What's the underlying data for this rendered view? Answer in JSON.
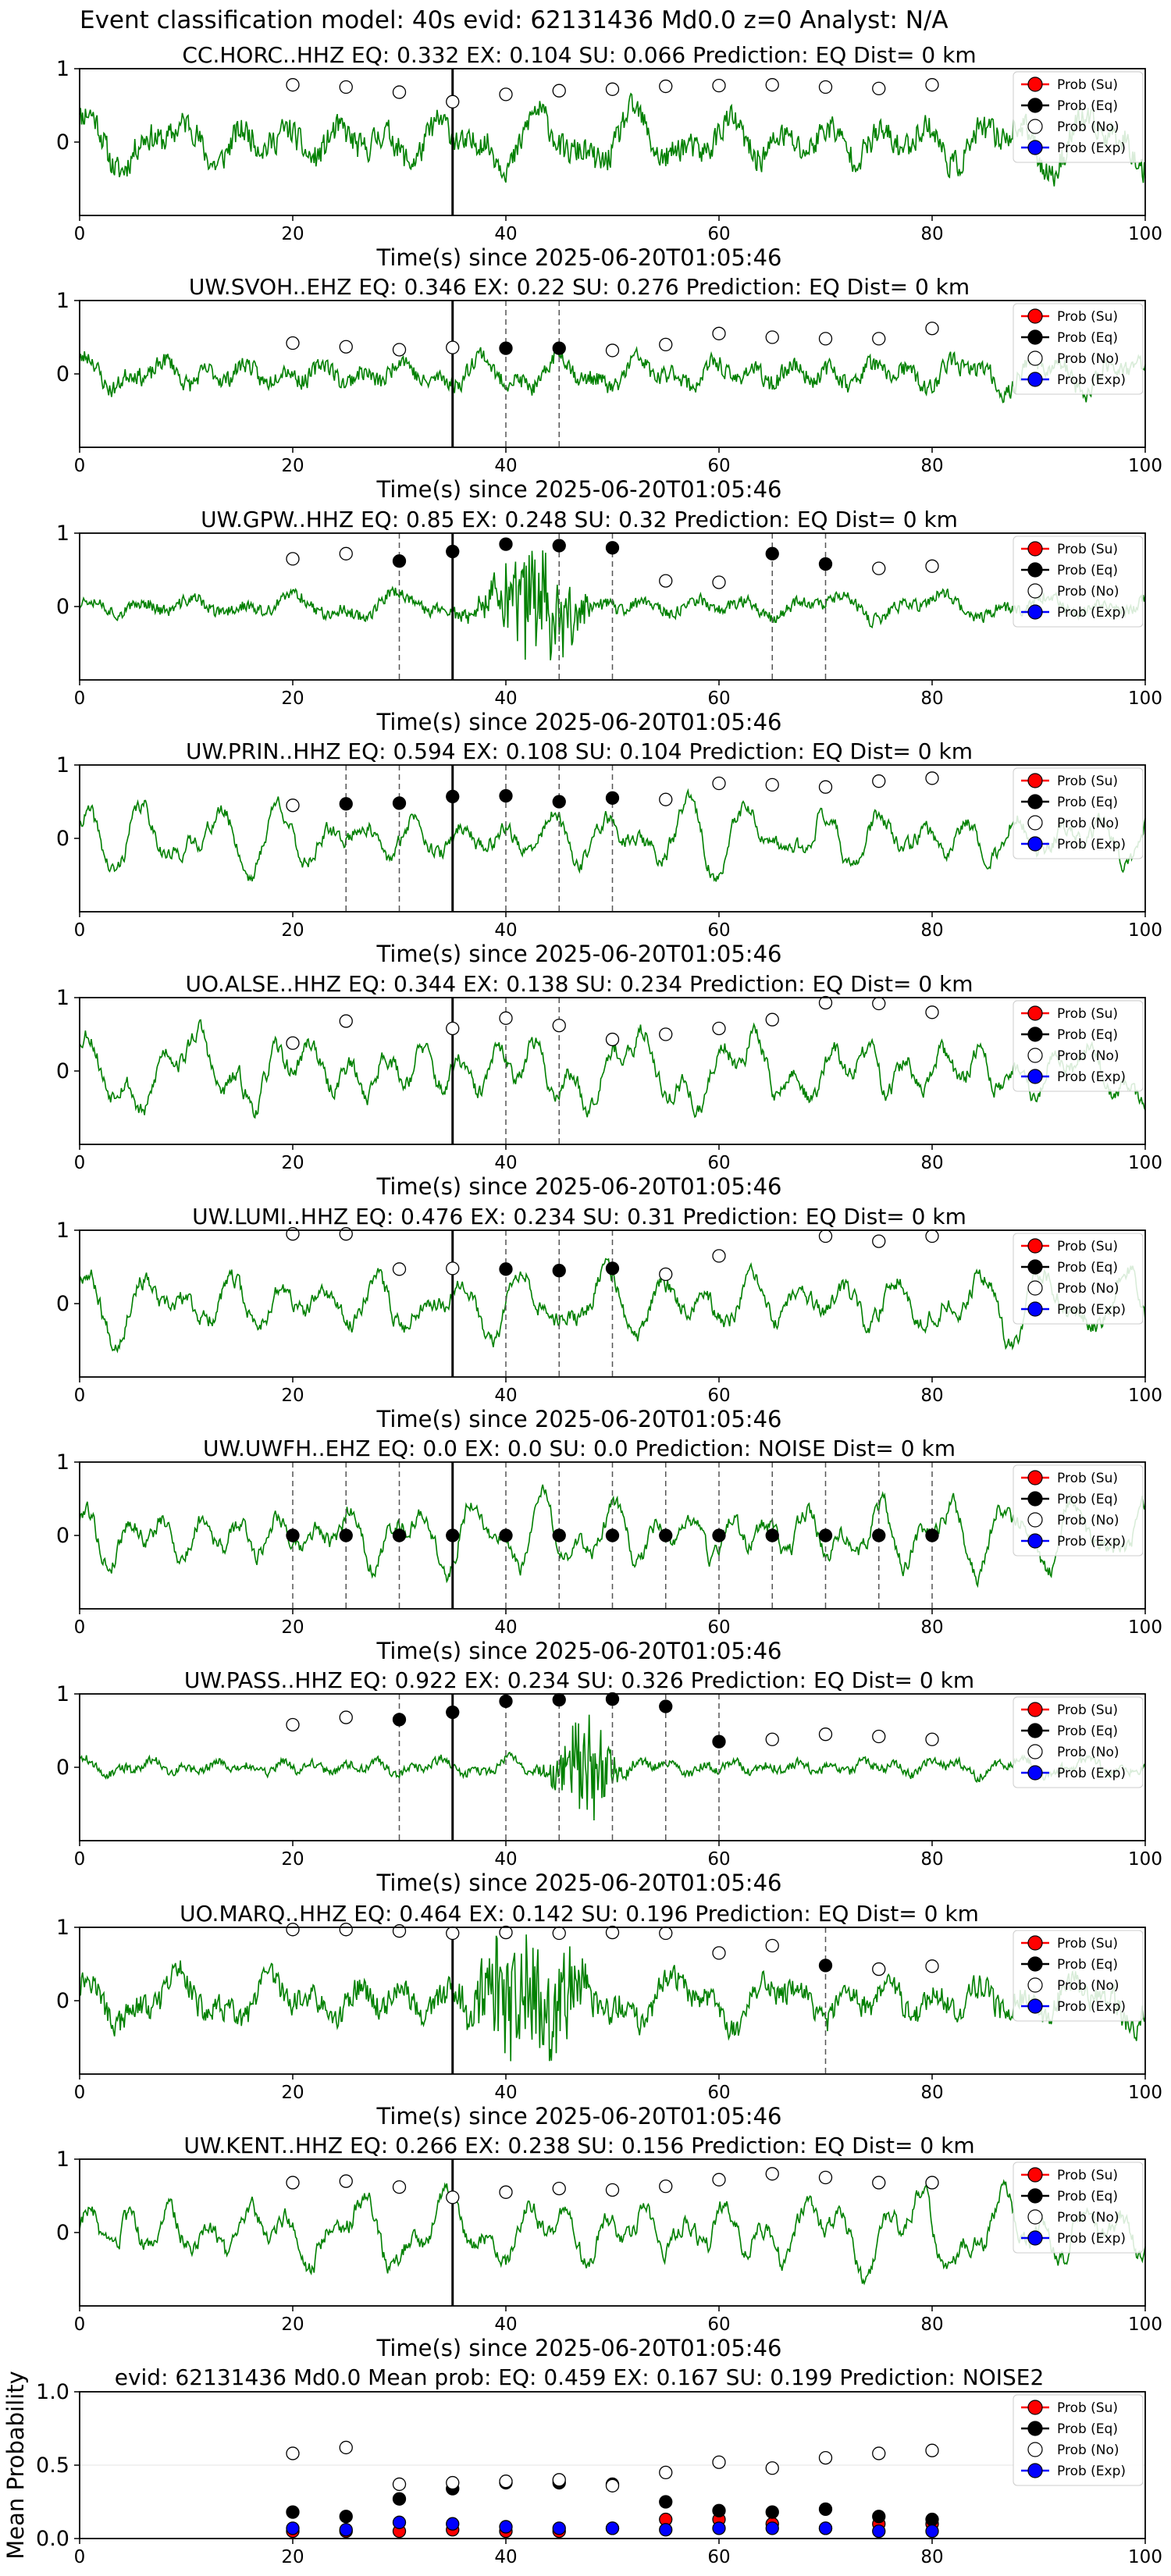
{
  "figure": {
    "suptitle": "Event classification model: 40s evid: 62131436 Md0.0 z=0 Analyst: N/A"
  },
  "legend_labels": [
    "Prob (Su)",
    "Prob (Eq)",
    "Prob (No)",
    "Prob (Exp)"
  ],
  "colors": {
    "waveform": "#008000",
    "su": "#ff0000",
    "eq": "#000000",
    "no": "#ffffff",
    "exp": "#0000ff",
    "pick_line": "#000000",
    "window_line": "#555555"
  },
  "chart_data": [
    {
      "type": "line",
      "station": "CC.HORC..HHZ",
      "title": "CC.HORC..HHZ   EQ: 0.332  EX: 0.104  SU: 0.066   Prediction: EQ    Dist= 0 km",
      "xlabel": "Time(s) since 2025-06-20T01:05:46",
      "xlim": [
        0,
        100
      ],
      "ylim": [
        -1,
        1
      ],
      "xticks": [
        0,
        20,
        40,
        60,
        80,
        100
      ],
      "yticks": [
        0,
        1
      ],
      "pick_time": 35,
      "amp": 0.55,
      "seed": 11,
      "burst": null,
      "eq_markers": [],
      "windows": [],
      "noise_markers": {
        "x": [
          20,
          25,
          30,
          35,
          40,
          45,
          50,
          55,
          60,
          65,
          70,
          75,
          80
        ],
        "y": [
          0.78,
          0.75,
          0.68,
          0.55,
          0.65,
          0.7,
          0.72,
          0.76,
          0.77,
          0.78,
          0.75,
          0.73,
          0.78
        ]
      }
    },
    {
      "type": "line",
      "station": "UW.SVOH..EHZ",
      "title": "UW.SVOH..EHZ   EQ: 0.346  EX: 0.22  SU: 0.276   Prediction: EQ    Dist= 0 km",
      "xlabel": "Time(s) since 2025-06-20T01:05:46",
      "xlim": [
        0,
        100
      ],
      "ylim": [
        -1,
        1
      ],
      "xticks": [
        0,
        20,
        40,
        60,
        80,
        100
      ],
      "yticks": [
        0,
        1
      ],
      "pick_time": 35,
      "amp": 0.35,
      "seed": 23,
      "burst": null,
      "eq_markers": [
        {
          "x": 40,
          "y": 0.35
        },
        {
          "x": 45,
          "y": 0.35
        }
      ],
      "windows": [
        40,
        45
      ],
      "noise_markers": {
        "x": [
          20,
          25,
          30,
          35,
          50,
          55,
          60,
          65,
          70,
          75,
          80
        ],
        "y": [
          0.42,
          0.37,
          0.33,
          0.36,
          0.32,
          0.4,
          0.55,
          0.5,
          0.48,
          0.48,
          0.62
        ]
      }
    },
    {
      "type": "line",
      "station": "UW.GPW..HHZ",
      "title": "UW.GPW..HHZ   EQ: 0.85  EX: 0.248  SU: 0.32   Prediction: EQ    Dist= 0 km",
      "xlabel": "Time(s) since 2025-06-20T01:05:46",
      "xlim": [
        0,
        100
      ],
      "ylim": [
        -1,
        1
      ],
      "xticks": [
        0,
        20,
        40,
        60,
        80,
        100
      ],
      "yticks": [
        0,
        1
      ],
      "pick_time": 35,
      "amp": 0.25,
      "seed": 37,
      "burst": {
        "center": 43,
        "width": 4,
        "gain": 3.2
      },
      "eq_markers": [
        {
          "x": 30,
          "y": 0.62
        },
        {
          "x": 35,
          "y": 0.75
        },
        {
          "x": 40,
          "y": 0.85
        },
        {
          "x": 45,
          "y": 0.83
        },
        {
          "x": 50,
          "y": 0.8
        },
        {
          "x": 65,
          "y": 0.72
        },
        {
          "x": 70,
          "y": 0.58
        }
      ],
      "windows": [
        30,
        45,
        50,
        65,
        70
      ],
      "noise_markers": {
        "x": [
          20,
          25,
          55,
          60,
          75,
          80
        ],
        "y": [
          0.65,
          0.72,
          0.35,
          0.33,
          0.52,
          0.55
        ]
      }
    },
    {
      "type": "line",
      "station": "UW.PRIN..HHZ",
      "title": "UW.PRIN..HHZ   EQ: 0.594  EX: 0.108  SU: 0.104   Prediction: EQ    Dist= 0 km",
      "xlabel": "Time(s) since 2025-06-20T01:05:46",
      "xlim": [
        0,
        100
      ],
      "ylim": [
        -1,
        1
      ],
      "xticks": [
        0,
        20,
        40,
        60,
        80,
        100
      ],
      "yticks": [
        0,
        1
      ],
      "pick_time": 35,
      "amp": 0.65,
      "seed": 41,
      "burst": null,
      "eq_markers": [
        {
          "x": 25,
          "y": 0.47
        },
        {
          "x": 30,
          "y": 0.48
        },
        {
          "x": 35,
          "y": 0.57
        },
        {
          "x": 40,
          "y": 0.58
        },
        {
          "x": 45,
          "y": 0.5
        },
        {
          "x": 50,
          "y": 0.55
        }
      ],
      "windows": [
        25,
        30,
        40,
        45,
        50
      ],
      "noise_markers": {
        "x": [
          20,
          55,
          60,
          65,
          70,
          75,
          80
        ],
        "y": [
          0.45,
          0.53,
          0.75,
          0.73,
          0.7,
          0.78,
          0.82
        ]
      }
    },
    {
      "type": "line",
      "station": "UO.ALSE..HHZ",
      "title": "UO.ALSE..HHZ   EQ: 0.344  EX: 0.138  SU: 0.234   Prediction: EQ    Dist= 0 km",
      "xlabel": "Time(s) since 2025-06-20T01:05:46",
      "xlim": [
        0,
        100
      ],
      "ylim": [
        -1,
        1
      ],
      "xticks": [
        0,
        20,
        40,
        60,
        80,
        100
      ],
      "yticks": [
        0,
        1
      ],
      "pick_time": 35,
      "amp": 0.75,
      "seed": 53,
      "burst": null,
      "eq_markers": [],
      "windows": [
        40,
        45
      ],
      "noise_markers": {
        "x": [
          20,
          25,
          35,
          40,
          45,
          50,
          55,
          60,
          65,
          70,
          75,
          80
        ],
        "y": [
          0.38,
          0.68,
          0.58,
          0.72,
          0.62,
          0.43,
          0.5,
          0.58,
          0.7,
          0.93,
          0.92,
          0.8
        ]
      }
    },
    {
      "type": "line",
      "station": "UW.LUMI..HHZ",
      "title": "UW.LUMI..HHZ   EQ: 0.476  EX: 0.234  SU: 0.31   Prediction: EQ    Dist= 0 km",
      "xlabel": "Time(s) since 2025-06-20T01:05:46",
      "xlim": [
        0,
        100
      ],
      "ylim": [
        -1,
        1
      ],
      "xticks": [
        0,
        20,
        40,
        60,
        80,
        100
      ],
      "yticks": [
        0,
        1
      ],
      "pick_time": 35,
      "amp": 0.7,
      "seed": 67,
      "burst": null,
      "eq_markers": [
        {
          "x": 40,
          "y": 0.47
        },
        {
          "x": 45,
          "y": 0.45
        },
        {
          "x": 50,
          "y": 0.48
        }
      ],
      "windows": [
        40,
        45,
        50
      ],
      "noise_markers": {
        "x": [
          20,
          25,
          30,
          35,
          55,
          60,
          70,
          75,
          80
        ],
        "y": [
          0.95,
          0.95,
          0.47,
          0.48,
          0.4,
          0.65,
          0.92,
          0.85,
          0.92
        ]
      }
    },
    {
      "type": "line",
      "station": "UW.UWFH..EHZ",
      "title": "UW.UWFH..EHZ   EQ: 0.0  EX: 0.0  SU: 0.0   Prediction: NOISE    Dist= 0 km",
      "xlabel": "Time(s) since 2025-06-20T01:05:46",
      "xlim": [
        0,
        100
      ],
      "ylim": [
        -1,
        1
      ],
      "xticks": [
        0,
        20,
        40,
        60,
        80,
        100
      ],
      "yticks": [
        0,
        1
      ],
      "pick_time": 35,
      "amp": 0.7,
      "seed": 79,
      "burst": null,
      "eq_markers": [
        {
          "x": 20,
          "y": 0
        },
        {
          "x": 25,
          "y": 0
        },
        {
          "x": 30,
          "y": 0
        },
        {
          "x": 35,
          "y": 0
        },
        {
          "x": 40,
          "y": 0
        },
        {
          "x": 45,
          "y": 0
        },
        {
          "x": 50,
          "y": 0
        },
        {
          "x": 55,
          "y": 0
        },
        {
          "x": 60,
          "y": 0
        },
        {
          "x": 65,
          "y": 0
        },
        {
          "x": 70,
          "y": 0
        },
        {
          "x": 75,
          "y": 0
        },
        {
          "x": 80,
          "y": 0
        }
      ],
      "windows": [
        20,
        25,
        30,
        40,
        45,
        50,
        55,
        60,
        65,
        70,
        75,
        80
      ],
      "noise_markers": {
        "x": [],
        "y": []
      }
    },
    {
      "type": "line",
      "station": "UW.PASS..HHZ",
      "title": "UW.PASS..HHZ   EQ: 0.922  EX: 0.234  SU: 0.326   Prediction: EQ    Dist= 0 km",
      "xlabel": "Time(s) since 2025-06-20T01:05:46",
      "xlim": [
        0,
        100
      ],
      "ylim": [
        -1,
        1
      ],
      "xticks": [
        0,
        20,
        40,
        60,
        80,
        100
      ],
      "yticks": [
        0,
        1
      ],
      "pick_time": 35,
      "amp": 0.18,
      "seed": 89,
      "burst": {
        "center": 47.5,
        "width": 2.5,
        "gain": 4.2
      },
      "eq_markers": [
        {
          "x": 30,
          "y": 0.65
        },
        {
          "x": 35,
          "y": 0.75
        },
        {
          "x": 40,
          "y": 0.9
        },
        {
          "x": 45,
          "y": 0.92
        },
        {
          "x": 50,
          "y": 0.93
        },
        {
          "x": 55,
          "y": 0.83
        },
        {
          "x": 60,
          "y": 0.35
        }
      ],
      "windows": [
        30,
        40,
        45,
        50,
        55,
        60
      ],
      "noise_markers": {
        "x": [
          20,
          25,
          65,
          70,
          75,
          80
        ],
        "y": [
          0.58,
          0.68,
          0.38,
          0.45,
          0.42,
          0.38
        ]
      }
    },
    {
      "type": "line",
      "station": "UO.MARQ..HHZ",
      "title": "UO.MARQ..HHZ   EQ: 0.464  EX: 0.142  SU: 0.196   Prediction: EQ    Dist= 0 km",
      "xlabel": "Time(s) since 2025-06-20T01:05:46",
      "xlim": [
        0,
        100
      ],
      "ylim": [
        -1,
        1
      ],
      "xticks": [
        0,
        20,
        40,
        60,
        80,
        100
      ],
      "yticks": [
        0,
        1
      ],
      "pick_time": 35,
      "amp": 0.5,
      "seed": 97,
      "burst": {
        "center": 42,
        "width": 5,
        "gain": 1.8
      },
      "eq_markers": [
        {
          "x": 70,
          "y": 0.48
        }
      ],
      "windows": [
        70
      ],
      "noise_markers": {
        "x": [
          20,
          25,
          30,
          35,
          40,
          45,
          50,
          55,
          60,
          65,
          75,
          80
        ],
        "y": [
          0.97,
          0.97,
          0.95,
          0.92,
          0.93,
          0.92,
          0.93,
          0.92,
          0.65,
          0.75,
          0.43,
          0.47
        ]
      }
    },
    {
      "type": "line",
      "station": "UW.KENT..HHZ",
      "title": "UW.KENT..HHZ   EQ: 0.266  EX: 0.238  SU: 0.156   Prediction: EQ    Dist= 0 km",
      "xlabel": "Time(s) since 2025-06-20T01:05:46",
      "xlim": [
        0,
        100
      ],
      "ylim": [
        -1,
        1
      ],
      "xticks": [
        0,
        20,
        40,
        60,
        80,
        100
      ],
      "yticks": [
        0,
        1
      ],
      "pick_time": 35,
      "amp": 0.75,
      "seed": 103,
      "burst": null,
      "eq_markers": [],
      "windows": [],
      "noise_markers": {
        "x": [
          20,
          25,
          30,
          35,
          40,
          45,
          50,
          55,
          60,
          65,
          70,
          75,
          80
        ],
        "y": [
          0.68,
          0.7,
          0.62,
          0.48,
          0.55,
          0.6,
          0.58,
          0.63,
          0.72,
          0.8,
          0.75,
          0.68,
          0.68
        ]
      }
    },
    {
      "type": "scatter",
      "station": "mean",
      "title": "evid: 62131436  Md0.0   Mean prob:   EQ: 0.459  EX: 0.167  SU: 0.199   Prediction: NOISE2",
      "xlabel": "",
      "ylabel": "Mean Probability",
      "xlim": [
        0,
        100
      ],
      "ylim": [
        0,
        1
      ],
      "xticks": [
        0,
        20,
        40,
        60,
        80,
        100
      ],
      "yticks": [
        0,
        0.5,
        1
      ],
      "yticklabels": [
        "0.0",
        "0.5",
        "1.0"
      ],
      "x": [
        20,
        25,
        30,
        35,
        40,
        45,
        50,
        55,
        60,
        65,
        70,
        75,
        80
      ],
      "series": [
        {
          "name": "Prob (Su)",
          "color": "#ff0000",
          "values": [
            0.05,
            0.05,
            0.05,
            0.06,
            0.05,
            0.05,
            0.07,
            0.13,
            0.13,
            0.1,
            0.07,
            0.1,
            0.1
          ]
        },
        {
          "name": "Prob (Eq)",
          "color": "#000000",
          "values": [
            0.18,
            0.15,
            0.27,
            0.34,
            0.38,
            0.38,
            0.37,
            0.25,
            0.19,
            0.18,
            0.2,
            0.15,
            0.13
          ]
        },
        {
          "name": "Prob (No)",
          "color": "#ffffff",
          "values": [
            0.58,
            0.62,
            0.37,
            0.38,
            0.39,
            0.4,
            0.36,
            0.45,
            0.52,
            0.48,
            0.55,
            0.58,
            0.6
          ]
        },
        {
          "name": "Prob (Exp)",
          "color": "#0000ff",
          "values": [
            0.07,
            0.06,
            0.11,
            0.1,
            0.08,
            0.07,
            0.07,
            0.06,
            0.07,
            0.07,
            0.07,
            0.05,
            0.05
          ]
        }
      ]
    }
  ]
}
